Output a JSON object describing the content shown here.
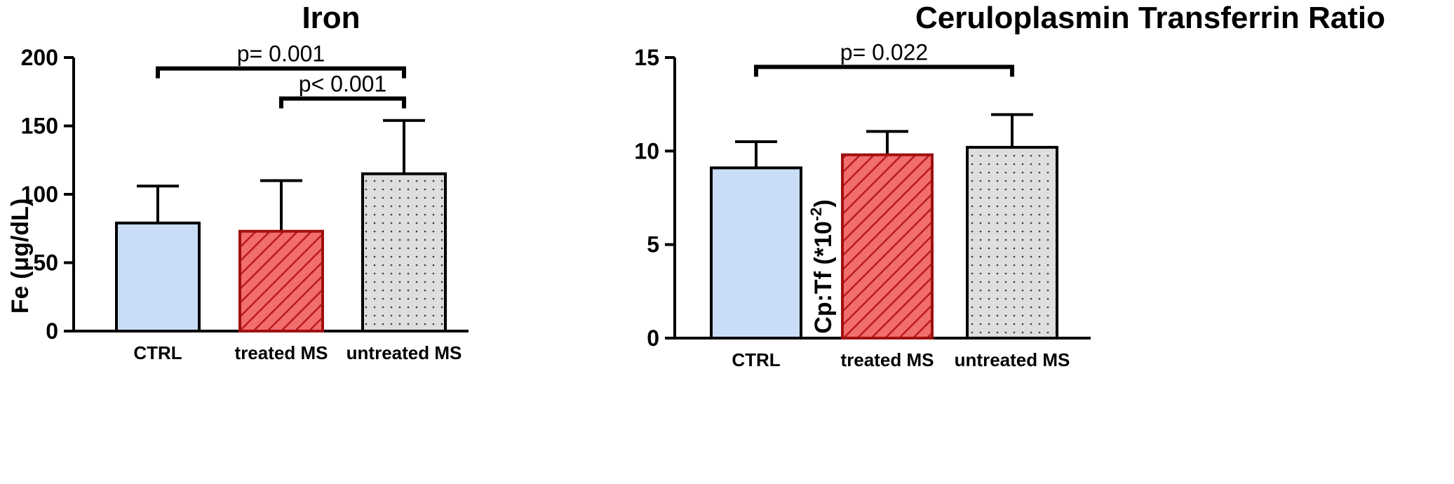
{
  "chart_data": [
    {
      "type": "bar",
      "title": "Iron",
      "ylabel": "Fe (µg/dL)",
      "ylabel_display": "Fe (μg/dL)",
      "categories": [
        "CTRL",
        "treated MS",
        "untreated MS"
      ],
      "values": [
        79,
        73,
        115
      ],
      "error_upper": [
        106,
        110,
        154
      ],
      "ylim": [
        0,
        200
      ],
      "yticks": [
        "0",
        "50",
        "100",
        "150",
        "200"
      ],
      "ytick_values": [
        0,
        50,
        100,
        150,
        200
      ],
      "significance": [
        {
          "from": 0,
          "to": 2,
          "label": "p= 0.001",
          "level": 192
        },
        {
          "from": 1,
          "to": 2,
          "label": "p< 0.001",
          "level": 170
        }
      ],
      "grid": false,
      "legend": "none"
    },
    {
      "type": "bar",
      "title": "Ceruloplasmin Transferrin Ratio",
      "ylabel_main": "Cp:Tf (*10",
      "ylabel_sup": "-2",
      "ylabel_end": ")",
      "categories": [
        "CTRL",
        "treated MS",
        "untreated MS"
      ],
      "values": [
        9.1,
        9.8,
        10.2
      ],
      "error_upper": [
        10.5,
        11.05,
        11.95
      ],
      "ylim": [
        0,
        15
      ],
      "yticks": [
        "0",
        "5",
        "10",
        "15"
      ],
      "ytick_values": [
        0,
        5,
        10,
        15
      ],
      "significance": [
        {
          "from": 0,
          "to": 2,
          "label": "p= 0.022",
          "level": 14.5
        }
      ],
      "grid": false,
      "legend": "none"
    }
  ],
  "colors": {
    "ctrl_fill": "#c9ddf7",
    "treated_fill": "#f26d6d",
    "treated_hatch": "#b81c1c",
    "treated_border": "#a01010",
    "untreated_fill": "#dedede",
    "untreated_dots": "#3a3a3a",
    "axis": "#000000"
  }
}
